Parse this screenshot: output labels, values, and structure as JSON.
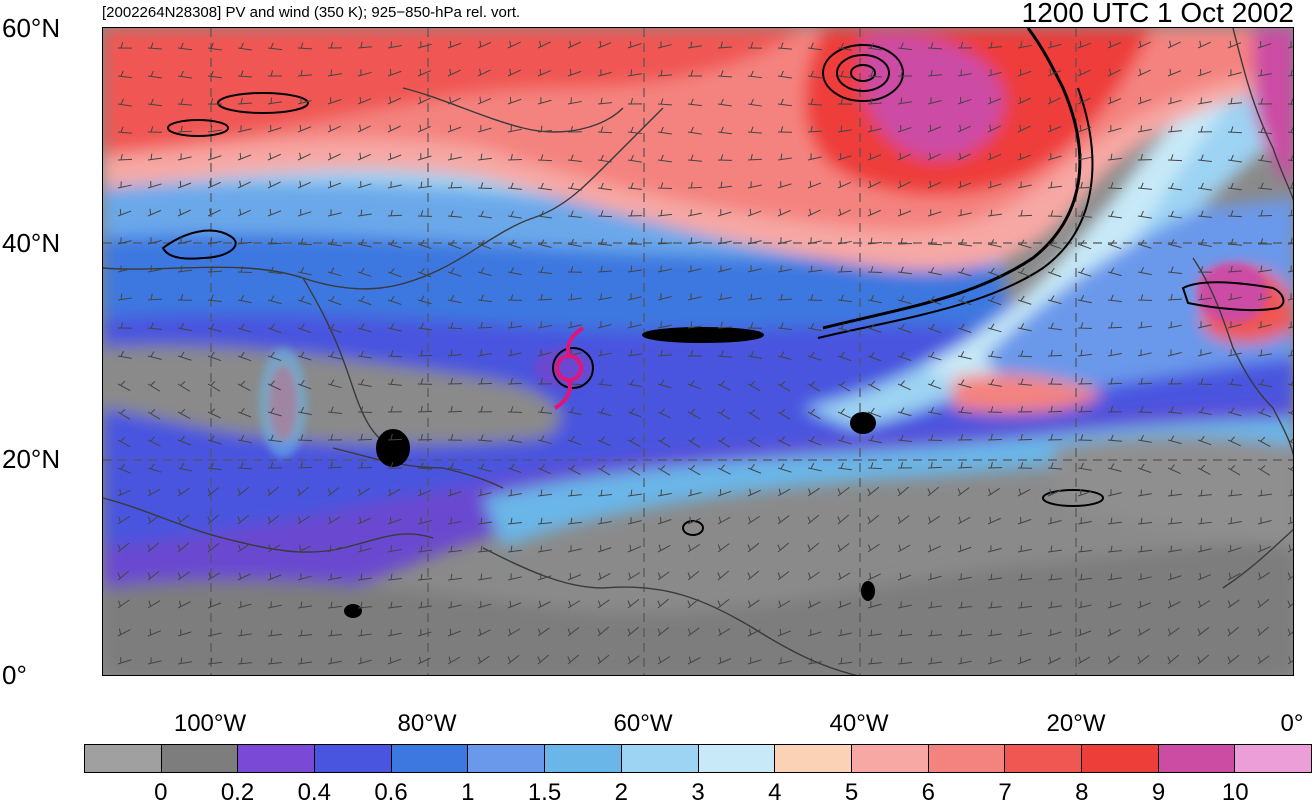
{
  "title": {
    "left": "[2002264N28308] PV and wind (350 K); 925−850-hPa rel. vort.",
    "right": "1200 UTC 1 Oct 2002"
  },
  "axes": {
    "lat_labels": [
      "60°N",
      "40°N",
      "20°N",
      "0°"
    ],
    "lon_labels": [
      "100°W",
      "80°W",
      "60°W",
      "40°W",
      "20°W",
      "0°"
    ]
  },
  "colorbar": {
    "labels": [
      "0",
      "0.2",
      "0.4",
      "0.6",
      "1",
      "1.5",
      "2",
      "3",
      "4",
      "5",
      "6",
      "7",
      "8",
      "9",
      "10"
    ],
    "colors": [
      "#a0a0a0",
      "#7d7d7d",
      "#7a4ad6",
      "#4a55df",
      "#3d78e0",
      "#6a98ea",
      "#6ab6e8",
      "#9dd3f3",
      "#c7e9f8",
      "#fbd2b6",
      "#f7a8a4",
      "#f4837f",
      "#f05753",
      "#ee3e3a",
      "#cc4ca4",
      "#ec9ed9"
    ]
  },
  "storm_marker": {
    "name": "tropical-cyclone-symbol",
    "color": "#e0157a"
  }
}
